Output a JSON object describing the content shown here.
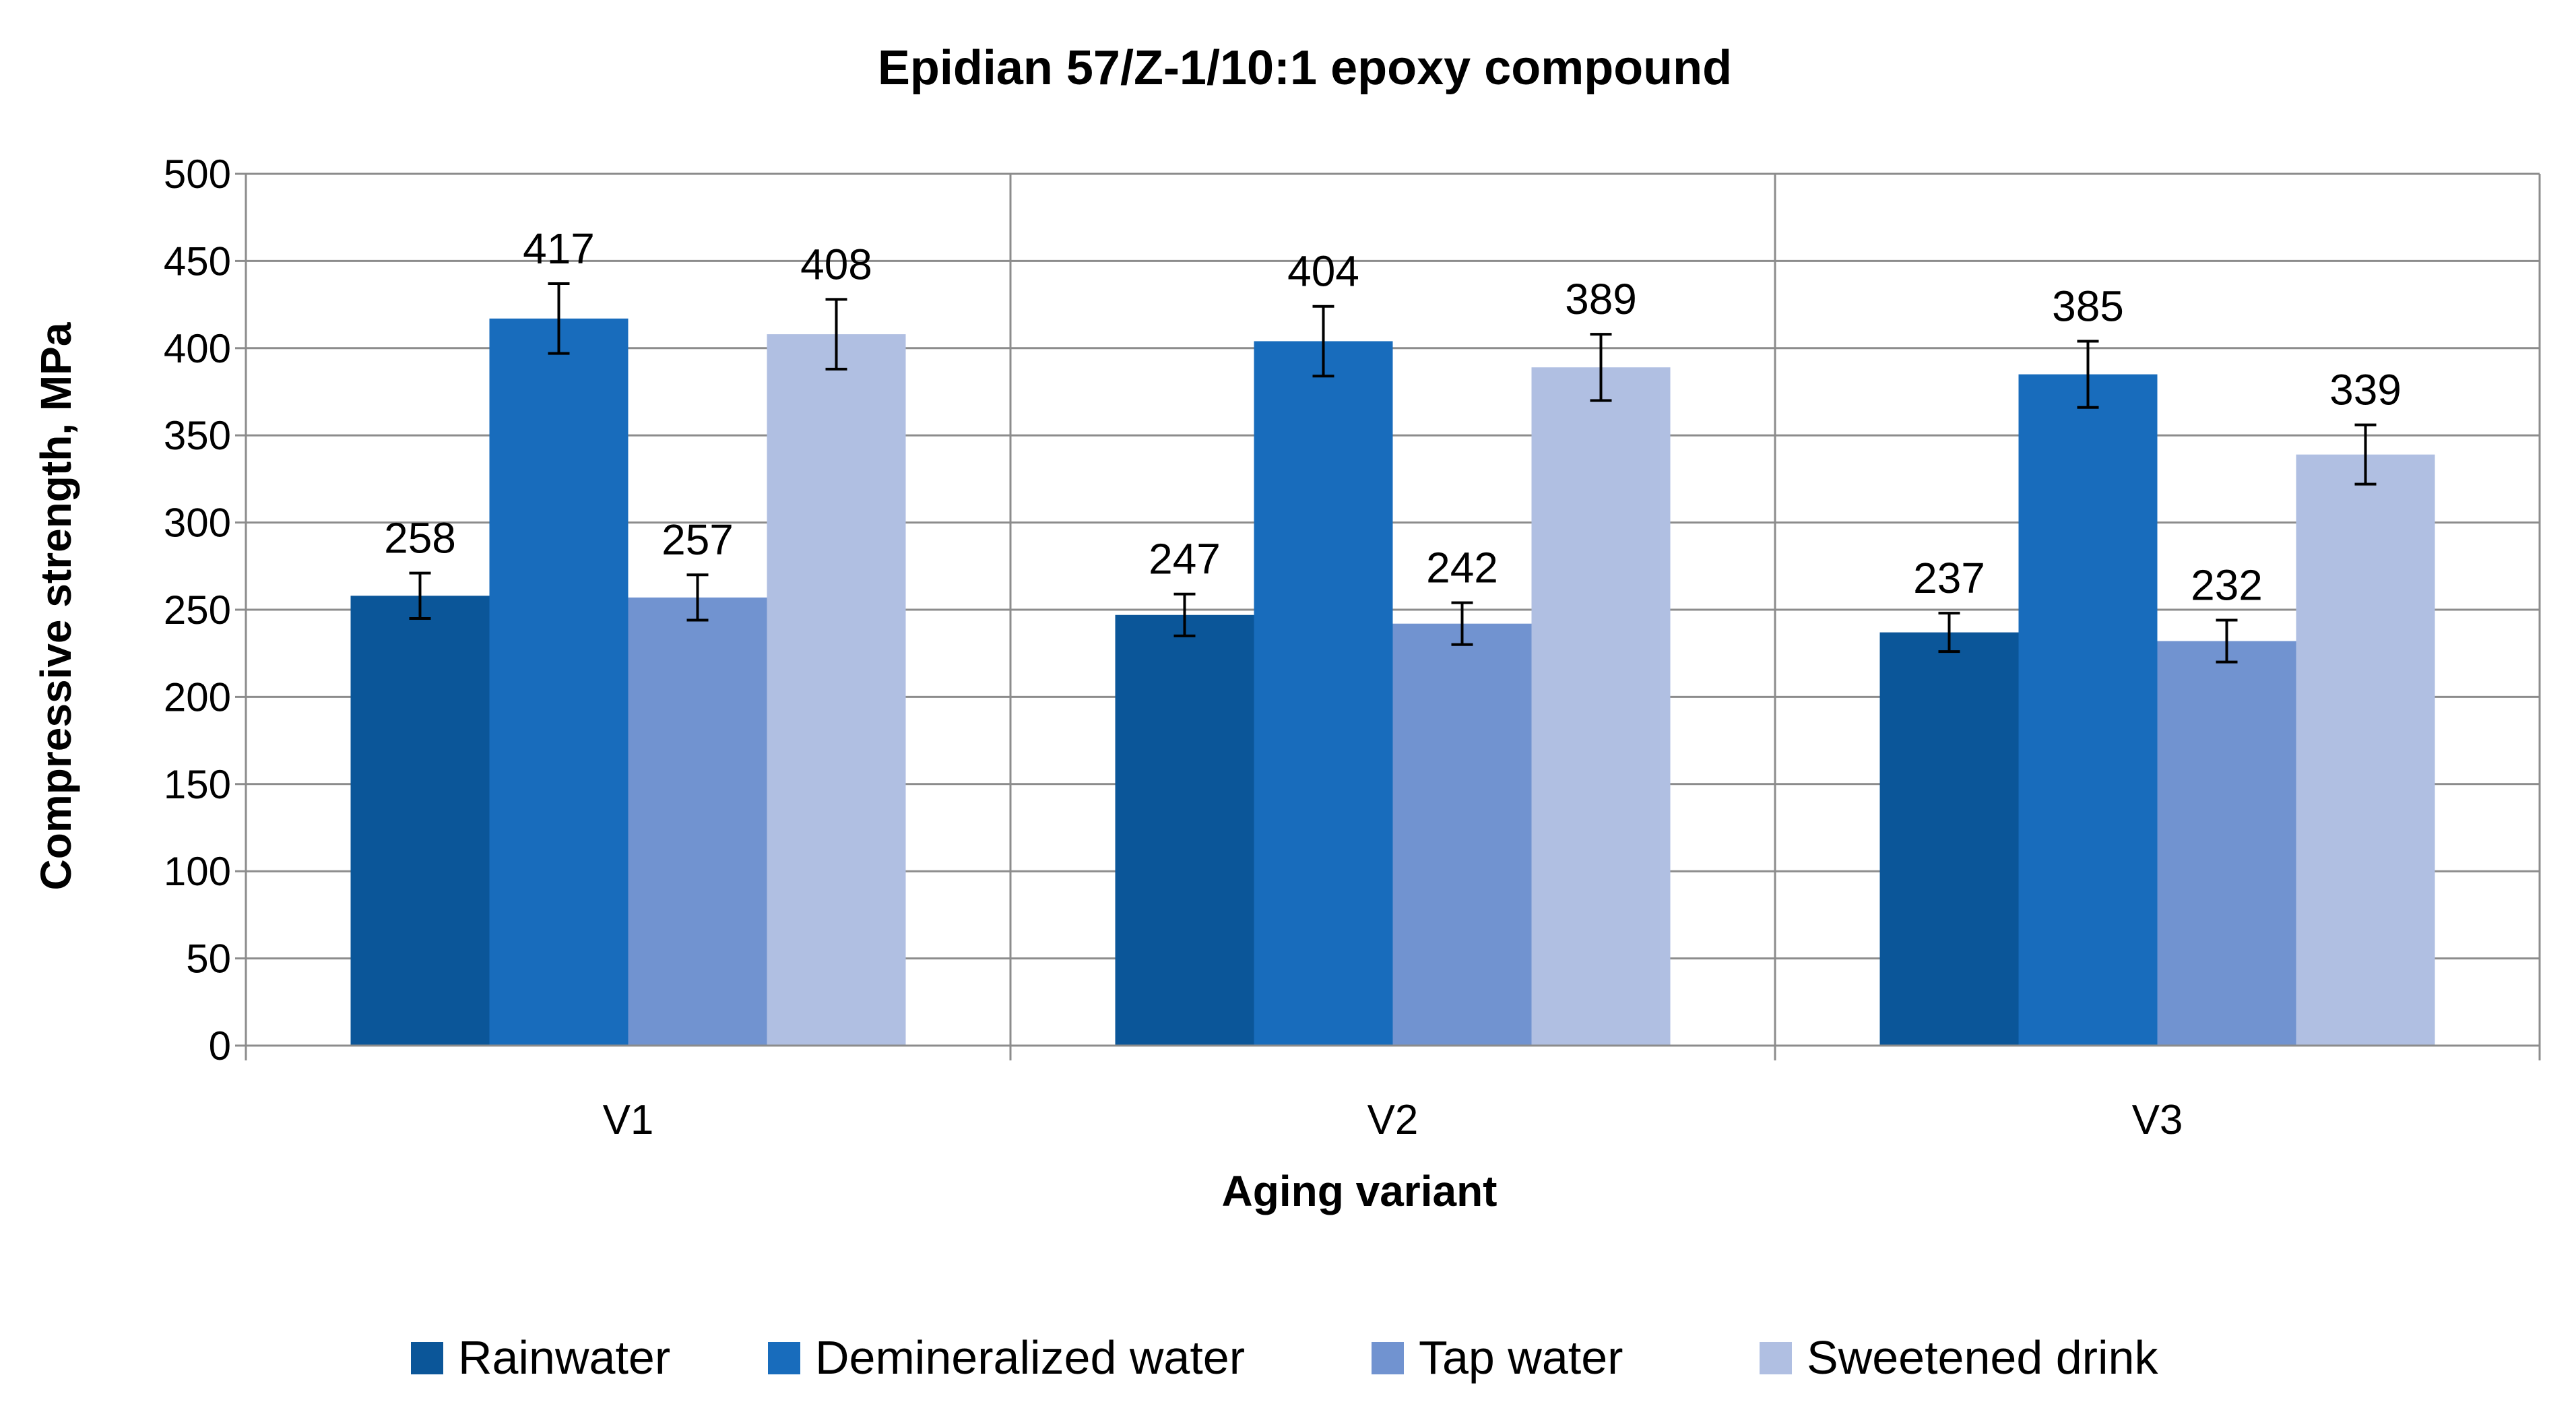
{
  "chart_data": {
    "type": "bar",
    "title": "Epidian 57/Z-1/10:1 epoxy compound",
    "xlabel": "Aging variant",
    "ylabel": "Compressive strength, MPa",
    "categories": [
      "V1",
      "V2",
      "V3"
    ],
    "ylim": [
      0,
      500
    ],
    "yticks": [
      0,
      50,
      100,
      150,
      200,
      250,
      300,
      350,
      400,
      450,
      500
    ],
    "ytick_labels": [
      "0",
      "50",
      "100",
      "150",
      "200",
      "250",
      "300",
      "350",
      "400",
      "450",
      "500"
    ],
    "grid": true,
    "legend_position": "bottom",
    "series": [
      {
        "name": "Rainwater",
        "color": "#0b5699",
        "values": [
          258,
          247,
          237
        ],
        "errors": [
          13,
          12,
          11
        ],
        "labels": [
          "258",
          "247",
          "237"
        ]
      },
      {
        "name": "Demineralized water",
        "color": "#186cbc",
        "values": [
          417,
          404,
          385
        ],
        "errors": [
          20,
          20,
          19
        ],
        "labels": [
          "417",
          "404",
          "385"
        ]
      },
      {
        "name": "Tap water",
        "color": "#7193d0",
        "values": [
          257,
          242,
          232
        ],
        "errors": [
          13,
          12,
          12
        ],
        "labels": [
          "257",
          "242",
          "232"
        ]
      },
      {
        "name": "Sweetened drink",
        "color": "#b0bfe2",
        "values": [
          408,
          389,
          339
        ],
        "errors": [
          20,
          19,
          17
        ],
        "labels": [
          "408",
          "389",
          "339"
        ]
      }
    ]
  }
}
